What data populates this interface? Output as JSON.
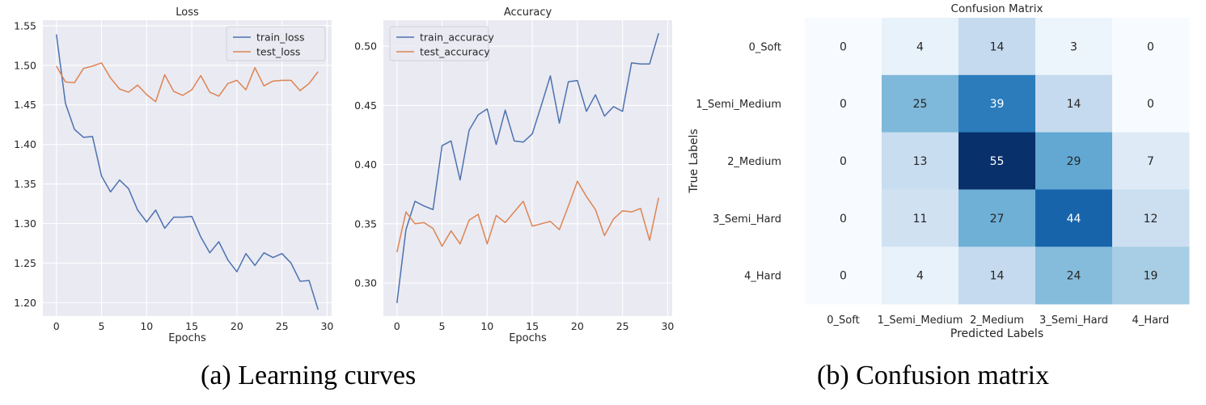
{
  "captions": {
    "a": "(a) Learning curves",
    "b": "(b) Confusion matrix"
  },
  "chart_data": [
    {
      "type": "line",
      "title": "Loss",
      "xlabel": "Epochs",
      "ylabel": "",
      "xlim": [
        -1.5,
        30.5
      ],
      "ylim": [
        1.183,
        1.557
      ],
      "xticks": [
        0,
        5,
        10,
        15,
        20,
        25,
        30
      ],
      "yticks": [
        1.2,
        1.25,
        1.3,
        1.35,
        1.4,
        1.45,
        1.5,
        1.55
      ],
      "ytick_decimals": 2,
      "grid": true,
      "legend_position": "top-right",
      "x": [
        0,
        1,
        2,
        3,
        4,
        5,
        6,
        7,
        8,
        9,
        10,
        11,
        12,
        13,
        14,
        15,
        16,
        17,
        18,
        19,
        20,
        21,
        22,
        23,
        24,
        25,
        26,
        27,
        28,
        29
      ],
      "series": [
        {
          "name": "train_loss",
          "color": "#4c72b0",
          "values": [
            1.539,
            1.452,
            1.419,
            1.409,
            1.41,
            1.36,
            1.34,
            1.355,
            1.344,
            1.317,
            1.302,
            1.317,
            1.294,
            1.308,
            1.308,
            1.309,
            1.283,
            1.263,
            1.277,
            1.254,
            1.239,
            1.262,
            1.247,
            1.263,
            1.257,
            1.262,
            1.25,
            1.227,
            1.228,
            1.191
          ]
        },
        {
          "name": "test_loss",
          "color": "#dd8452",
          "values": [
            1.499,
            1.479,
            1.478,
            1.496,
            1.499,
            1.503,
            1.484,
            1.47,
            1.466,
            1.475,
            1.463,
            1.454,
            1.488,
            1.467,
            1.462,
            1.469,
            1.487,
            1.466,
            1.461,
            1.477,
            1.481,
            1.469,
            1.497,
            1.474,
            1.48,
            1.481,
            1.481,
            1.468,
            1.477,
            1.492
          ]
        }
      ]
    },
    {
      "type": "line",
      "title": "Accuracy",
      "xlabel": "Epochs",
      "ylabel": "",
      "xlim": [
        -1.5,
        30.5
      ],
      "ylim": [
        0.272,
        0.522
      ],
      "xticks": [
        0,
        5,
        10,
        15,
        20,
        25,
        30
      ],
      "yticks": [
        0.3,
        0.35,
        0.4,
        0.45,
        0.5
      ],
      "ytick_decimals": 2,
      "grid": true,
      "legend_position": "top-left",
      "x": [
        0,
        1,
        2,
        3,
        4,
        5,
        6,
        7,
        8,
        9,
        10,
        11,
        12,
        13,
        14,
        15,
        16,
        17,
        18,
        19,
        20,
        21,
        22,
        23,
        24,
        25,
        26,
        27,
        28,
        29
      ],
      "series": [
        {
          "name": "train_accuracy",
          "color": "#4c72b0",
          "values": [
            0.283,
            0.345,
            0.369,
            0.365,
            0.362,
            0.416,
            0.42,
            0.387,
            0.429,
            0.442,
            0.447,
            0.417,
            0.446,
            0.42,
            0.419,
            0.426,
            0.45,
            0.475,
            0.435,
            0.47,
            0.471,
            0.445,
            0.459,
            0.441,
            0.449,
            0.445,
            0.486,
            0.485,
            0.485,
            0.511
          ]
        },
        {
          "name": "test_accuracy",
          "color": "#dd8452",
          "values": [
            0.326,
            0.36,
            0.35,
            0.351,
            0.346,
            0.331,
            0.344,
            0.333,
            0.353,
            0.358,
            0.333,
            0.357,
            0.351,
            0.36,
            0.369,
            0.348,
            0.35,
            0.352,
            0.345,
            0.365,
            0.386,
            0.373,
            0.362,
            0.34,
            0.354,
            0.361,
            0.36,
            0.363,
            0.336,
            0.372
          ]
        }
      ]
    },
    {
      "type": "heatmap",
      "title": "Confusion Matrix",
      "xlabel": "Predicted Labels",
      "ylabel": "True Labels",
      "x_categories": [
        "0_Soft",
        "1_Semi_Medium",
        "2_Medium",
        "3_Semi_Hard",
        "4_Hard"
      ],
      "y_categories": [
        "0_Soft",
        "1_Semi_Medium",
        "2_Medium",
        "3_Semi_Hard",
        "4_Hard"
      ],
      "colormap": "Blues",
      "vmin": 0,
      "vmax": 55,
      "values": [
        [
          0,
          4,
          14,
          3,
          0
        ],
        [
          0,
          25,
          39,
          14,
          0
        ],
        [
          0,
          13,
          55,
          29,
          7
        ],
        [
          0,
          11,
          27,
          44,
          12
        ],
        [
          0,
          4,
          14,
          24,
          19
        ]
      ]
    }
  ]
}
